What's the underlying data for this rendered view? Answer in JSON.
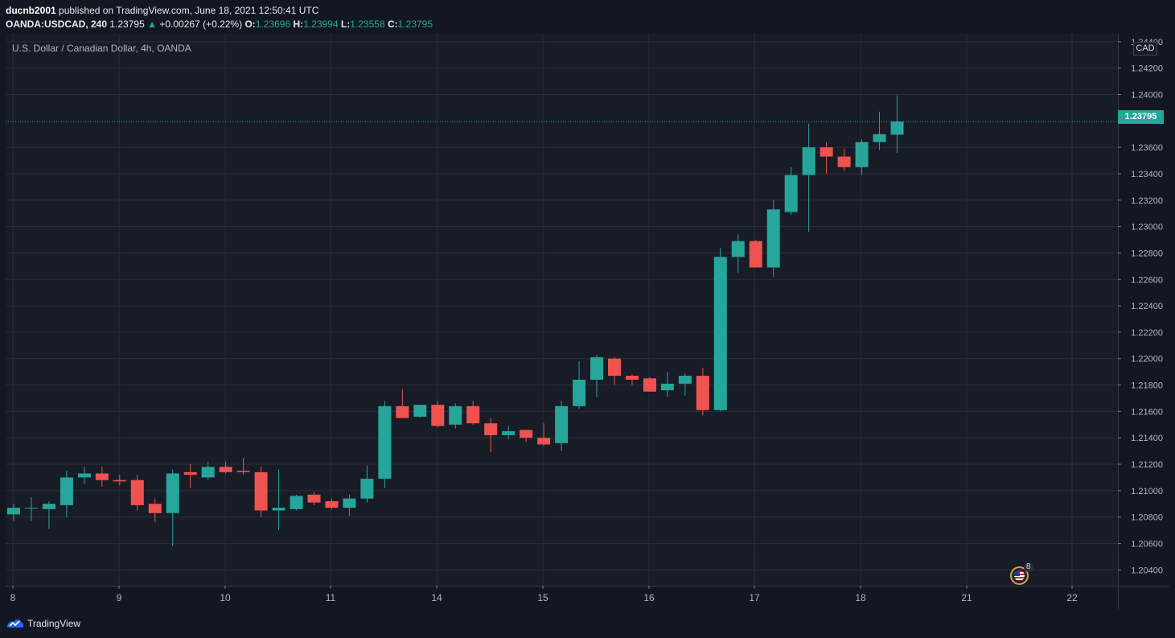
{
  "header": {
    "author": "ducnb2001",
    "published_text": " published on TradingView.com, June 18, 2021 12:50:41 UTC",
    "symbol": "OANDA:USDCAD, 240",
    "last": "1.23795",
    "arrow": "▲",
    "change": "+0.00267 (+0.22%)",
    "o_label": "O:",
    "o_value": "1.23696",
    "h_label": "H:",
    "h_value": "1.23994",
    "l_label": "L:",
    "l_value": "1.23558",
    "c_label": "C:",
    "c_value": "1.23795"
  },
  "chart": {
    "series_label": "U.S. Dollar / Canadian Dollar, 4h, OANDA",
    "currency": "CAD",
    "last_price_tag": "1.23795",
    "event_count": "8",
    "colors": {
      "up": "#26a69a",
      "down": "#ef5350",
      "background": "#181c27",
      "grid": "#2a2e39",
      "axis_text": "#b2b5be"
    }
  },
  "chart_data": {
    "type": "candlestick",
    "title": "U.S. Dollar / Canadian Dollar, 4h, OANDA",
    "y_ticks": [
      "1.20400",
      "1.20600",
      "1.20800",
      "1.21000",
      "1.21200",
      "1.21400",
      "1.21600",
      "1.21800",
      "1.22000",
      "1.22200",
      "1.22400",
      "1.22600",
      "1.22800",
      "1.23000",
      "1.23200",
      "1.23400",
      "1.23600",
      "1.24000",
      "1.24200",
      "1.24400"
    ],
    "x_ticks": [
      "8",
      "9",
      "10",
      "11",
      "14",
      "15",
      "16",
      "17",
      "18",
      "21",
      "22"
    ],
    "ylim": [
      1.2028,
      1.2446
    ],
    "grid": true,
    "last_price": 1.23795,
    "candles": [
      {
        "o": 1.2082,
        "h": 1.209,
        "l": 1.2077,
        "c": 1.2087
      },
      {
        "o": 1.2087,
        "h": 1.2095,
        "l": 1.2077,
        "c": 1.2087
      },
      {
        "o": 1.2086,
        "h": 1.2092,
        "l": 1.2071,
        "c": 1.209
      },
      {
        "o": 1.2089,
        "h": 1.2115,
        "l": 1.208,
        "c": 1.211
      },
      {
        "o": 1.211,
        "h": 1.2118,
        "l": 1.2105,
        "c": 1.2113
      },
      {
        "o": 1.2113,
        "h": 1.2118,
        "l": 1.2103,
        "c": 1.2108
      },
      {
        "o": 1.2108,
        "h": 1.2112,
        "l": 1.2104,
        "c": 1.2107
      },
      {
        "o": 1.2108,
        "h": 1.2112,
        "l": 1.2085,
        "c": 1.2089
      },
      {
        "o": 1.209,
        "h": 1.2094,
        "l": 1.2076,
        "c": 1.2083
      },
      {
        "o": 1.2083,
        "h": 1.2116,
        "l": 1.2058,
        "c": 1.2113
      },
      {
        "o": 1.2114,
        "h": 1.212,
        "l": 1.2102,
        "c": 1.2112
      },
      {
        "o": 1.211,
        "h": 1.2122,
        "l": 1.2108,
        "c": 1.2118
      },
      {
        "o": 1.2118,
        "h": 1.2122,
        "l": 1.2113,
        "c": 1.2114
      },
      {
        "o": 1.2115,
        "h": 1.2125,
        "l": 1.2112,
        "c": 1.2114
      },
      {
        "o": 1.2114,
        "h": 1.2118,
        "l": 1.208,
        "c": 1.2085
      },
      {
        "o": 1.2085,
        "h": 1.2116,
        "l": 1.207,
        "c": 1.2087
      },
      {
        "o": 1.2086,
        "h": 1.2097,
        "l": 1.2085,
        "c": 1.2096
      },
      {
        "o": 1.2097,
        "h": 1.2099,
        "l": 1.2089,
        "c": 1.2091
      },
      {
        "o": 1.2092,
        "h": 1.2094,
        "l": 1.2086,
        "c": 1.2087
      },
      {
        "o": 1.2087,
        "h": 1.2097,
        "l": 1.2081,
        "c": 1.2094
      },
      {
        "o": 1.2094,
        "h": 1.2119,
        "l": 1.2091,
        "c": 1.2109
      },
      {
        "o": 1.2109,
        "h": 1.2168,
        "l": 1.2102,
        "c": 1.2164
      },
      {
        "o": 1.2164,
        "h": 1.2177,
        "l": 1.2155,
        "c": 1.2155
      },
      {
        "o": 1.2156,
        "h": 1.2165,
        "l": 1.2155,
        "c": 1.2165
      },
      {
        "o": 1.2165,
        "h": 1.2168,
        "l": 1.2148,
        "c": 1.2149
      },
      {
        "o": 1.215,
        "h": 1.2166,
        "l": 1.2147,
        "c": 1.2164
      },
      {
        "o": 1.2164,
        "h": 1.2168,
        "l": 1.215,
        "c": 1.2151
      },
      {
        "o": 1.2151,
        "h": 1.2155,
        "l": 1.2129,
        "c": 1.2142
      },
      {
        "o": 1.2142,
        "h": 1.2149,
        "l": 1.2139,
        "c": 1.2145
      },
      {
        "o": 1.2146,
        "h": 1.2146,
        "l": 1.2137,
        "c": 1.214
      },
      {
        "o": 1.214,
        "h": 1.2151,
        "l": 1.2134,
        "c": 1.2135
      },
      {
        "o": 1.2136,
        "h": 1.2168,
        "l": 1.213,
        "c": 1.2164
      },
      {
        "o": 1.2164,
        "h": 1.2198,
        "l": 1.2162,
        "c": 1.2184
      },
      {
        "o": 1.2184,
        "h": 1.2203,
        "l": 1.2171,
        "c": 1.2201
      },
      {
        "o": 1.22,
        "h": 1.2201,
        "l": 1.218,
        "c": 1.2187
      },
      {
        "o": 1.2187,
        "h": 1.2188,
        "l": 1.218,
        "c": 1.2184
      },
      {
        "o": 1.2185,
        "h": 1.2186,
        "l": 1.2175,
        "c": 1.2175
      },
      {
        "o": 1.2176,
        "h": 1.219,
        "l": 1.2171,
        "c": 1.2181
      },
      {
        "o": 1.2181,
        "h": 1.2189,
        "l": 1.2172,
        "c": 1.2187
      },
      {
        "o": 1.2187,
        "h": 1.2193,
        "l": 1.2157,
        "c": 1.2161
      },
      {
        "o": 1.2161,
        "h": 1.2284,
        "l": 1.216,
        "c": 1.2277
      },
      {
        "o": 1.2277,
        "h": 1.2294,
        "l": 1.2265,
        "c": 1.2289
      },
      {
        "o": 1.2289,
        "h": 1.229,
        "l": 1.2269,
        "c": 1.2269
      },
      {
        "o": 1.2269,
        "h": 1.232,
        "l": 1.2262,
        "c": 1.2313
      },
      {
        "o": 1.2311,
        "h": 1.2345,
        "l": 1.2309,
        "c": 1.2339
      },
      {
        "o": 1.2339,
        "h": 1.2378,
        "l": 1.2296,
        "c": 1.236
      },
      {
        "o": 1.236,
        "h": 1.2364,
        "l": 1.234,
        "c": 1.2353
      },
      {
        "o": 1.2353,
        "h": 1.2359,
        "l": 1.2342,
        "c": 1.2345
      },
      {
        "o": 1.2345,
        "h": 1.2366,
        "l": 1.2339,
        "c": 1.2364
      },
      {
        "o": 1.2364,
        "h": 1.2387,
        "l": 1.2358,
        "c": 1.237
      },
      {
        "o": 1.23696,
        "h": 1.23994,
        "l": 1.23558,
        "c": 1.23795
      }
    ]
  },
  "footer": {
    "brand": "TradingView"
  }
}
